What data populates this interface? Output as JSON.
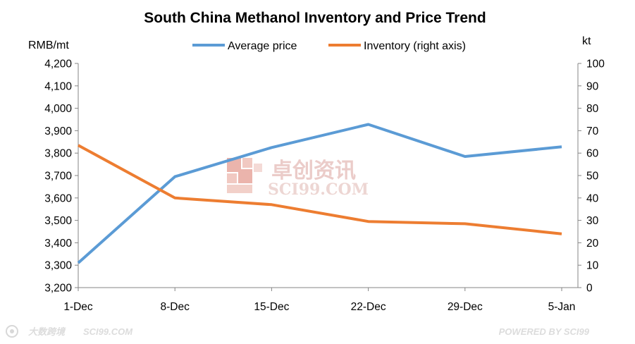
{
  "chart_data": {
    "type": "line",
    "title": "South China Methanol Inventory and Price Trend",
    "categories": [
      "1-Dec",
      "8-Dec",
      "15-Dec",
      "22-Dec",
      "29-Dec",
      "5-Jan"
    ],
    "left_axis": {
      "unit_label": "RMB/mt",
      "range": [
        3200,
        4200
      ],
      "ticks": [
        "4,200",
        "4,100",
        "4,000",
        "3,900",
        "3,800",
        "3,700",
        "3,600",
        "3,500",
        "3,400",
        "3,300",
        "3,200"
      ]
    },
    "right_axis": {
      "unit_label": "kt",
      "range": [
        0,
        100
      ],
      "ticks": [
        "100",
        "90",
        "80",
        "70",
        "60",
        "50",
        "40",
        "30",
        "20",
        "10",
        "0"
      ]
    },
    "series": [
      {
        "name": "Average price",
        "axis": "left",
        "color": "#5b9bd5",
        "values": [
          3310,
          3695,
          3825,
          3928,
          3785,
          3828
        ]
      },
      {
        "name": "Inventory (right axis)",
        "axis": "right",
        "color": "#ed7d31",
        "values": [
          63.5,
          40,
          37,
          29.5,
          28.5,
          24
        ]
      }
    ],
    "grid": false,
    "legend_position": "top-center"
  },
  "watermark": {
    "chinese": "卓创资讯",
    "english": "SCI99.COM",
    "logo_color": "#e8a89e"
  },
  "footer": {
    "left_brand": "大数跨境",
    "left_site": "SCI99.COM",
    "right_text": "POWERED BY SCI99"
  }
}
